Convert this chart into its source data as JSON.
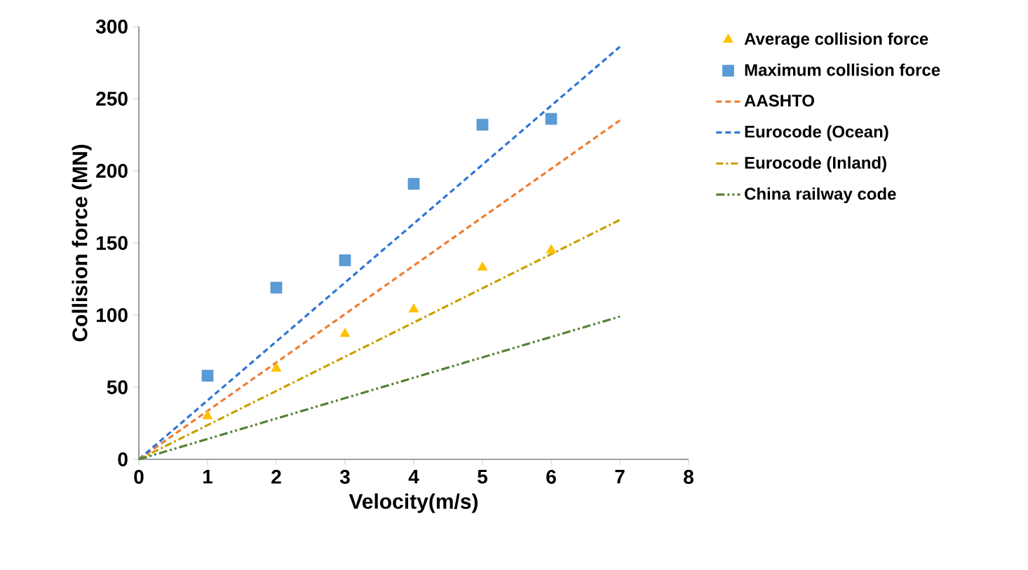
{
  "chart_data": {
    "type": "scatter",
    "xlabel": "Velocity(m/s)",
    "ylabel": "Collision force  (MN)",
    "xlim": [
      0,
      8
    ],
    "ylim": [
      0,
      300
    ],
    "xticks": [
      0,
      1,
      2,
      3,
      4,
      5,
      6,
      7,
      8
    ],
    "yticks": [
      0,
      50,
      100,
      150,
      200,
      250,
      300
    ],
    "grid": false,
    "legend": "right",
    "series": [
      {
        "name": "Average collision force",
        "marker": "triangle",
        "color": "#ffc000",
        "x": [
          1,
          2,
          3,
          4,
          5,
          6
        ],
        "values": [
          30,
          63,
          87,
          104,
          133,
          145
        ]
      },
      {
        "name": "Maximum collision force",
        "marker": "square",
        "color": "#5b9bd5",
        "x": [
          1,
          2,
          3,
          4,
          5,
          6
        ],
        "values": [
          58,
          119,
          138,
          191,
          232,
          236
        ]
      },
      {
        "name": "AASHTO",
        "type": "line",
        "line_style": "dashed",
        "color": "#ed7d31",
        "x": [
          0,
          7
        ],
        "values": [
          0,
          235
        ]
      },
      {
        "name": "Eurocode (Ocean)",
        "type": "line",
        "line_style": "dashed",
        "color": "#2e75d6",
        "x": [
          0,
          7
        ],
        "values": [
          0,
          286
        ]
      },
      {
        "name": "Eurocode (Inland)",
        "type": "line",
        "line_style": "dashdot",
        "color": "#c9a000",
        "x": [
          0,
          7
        ],
        "values": [
          0,
          166
        ]
      },
      {
        "name": "China railway code",
        "type": "line",
        "line_style": "dashdotdot",
        "color": "#548235",
        "x": [
          0,
          7
        ],
        "values": [
          0,
          99
        ]
      }
    ]
  }
}
